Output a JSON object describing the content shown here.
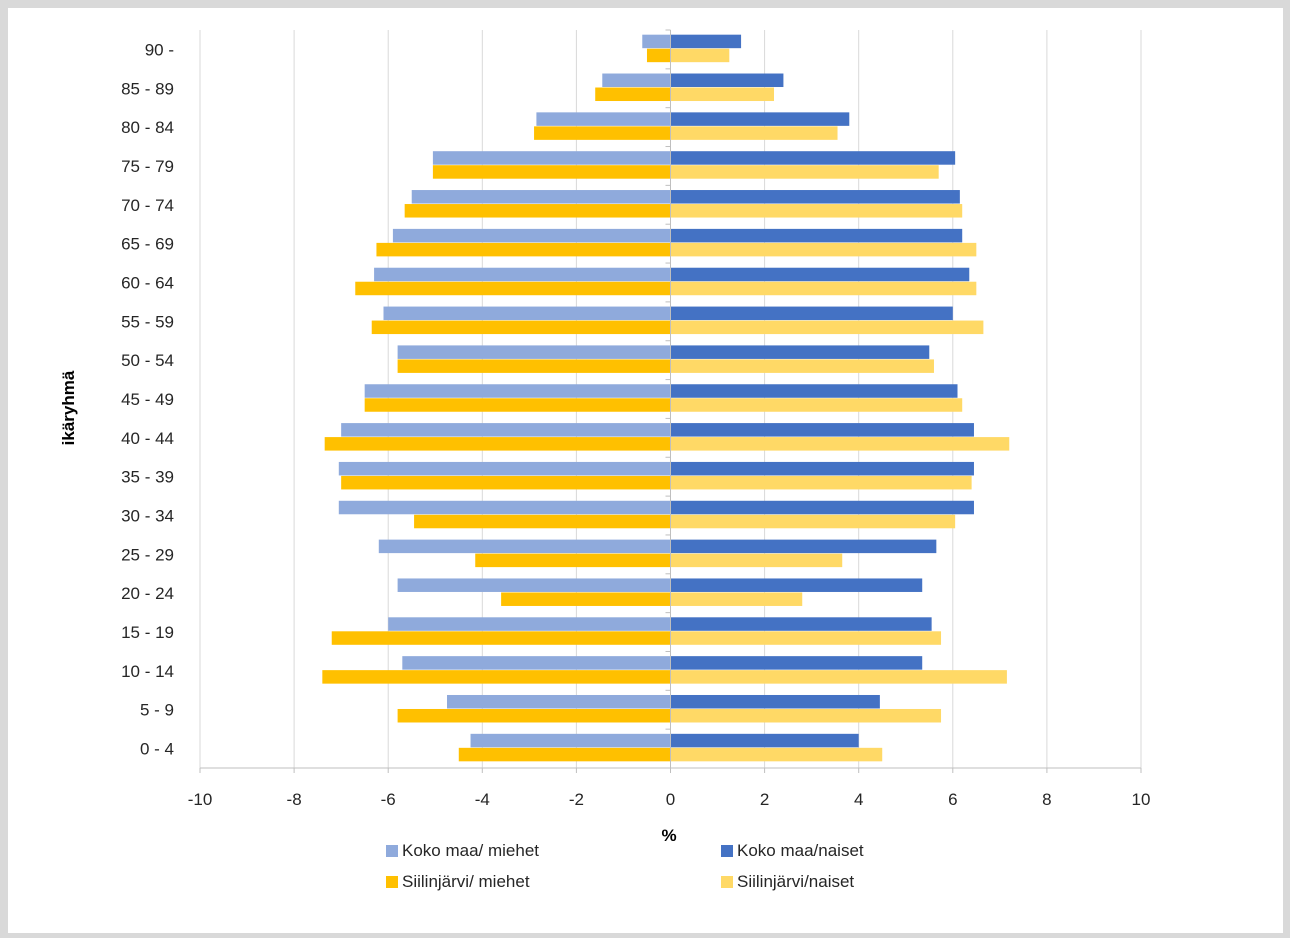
{
  "chart_data": {
    "type": "bar",
    "orientation": "horizontal",
    "title": "",
    "xlabel": "%",
    "ylabel": "ikäryhmä",
    "xlim": [
      -10,
      10
    ],
    "xticks": [
      -10,
      -8,
      -6,
      -4,
      -2,
      0,
      2,
      4,
      6,
      8,
      10
    ],
    "grid": "vertical",
    "legend_position": "bottom",
    "categories": [
      "0 - 4",
      "5 - 9",
      "10 - 14",
      "15 - 19",
      "20 - 24",
      "25 - 29",
      "30 - 34",
      "35 - 39",
      "40 - 44",
      "45 - 49",
      "50 - 54",
      "55 - 59",
      "60 - 64",
      "65 - 69",
      "70 - 74",
      "75 - 79",
      "80 - 84",
      "85 - 89",
      "90 -"
    ],
    "series": [
      {
        "name": "Koko maa/ miehet",
        "color": "#8faadc",
        "side": "left",
        "slot": 0,
        "values": [
          -4.25,
          -4.75,
          -5.7,
          -6.0,
          -5.8,
          -6.2,
          -7.05,
          -7.05,
          -7.0,
          -6.5,
          -5.8,
          -6.1,
          -6.3,
          -5.9,
          -5.5,
          -5.05,
          -2.85,
          -1.45,
          -0.6
        ]
      },
      {
        "name": "Siilinjärvi/ miehet",
        "color": "#ffc000",
        "side": "left",
        "slot": 1,
        "values": [
          -4.5,
          -5.8,
          -7.4,
          -7.2,
          -3.6,
          -4.15,
          -5.45,
          -7.0,
          -7.35,
          -6.5,
          -5.8,
          -6.35,
          -6.7,
          -6.25,
          -5.65,
          -5.05,
          -2.9,
          -1.6,
          -0.5
        ]
      },
      {
        "name": "Koko maa/naiset",
        "color": "#4472c4",
        "side": "right",
        "slot": 0,
        "values": [
          4.0,
          4.45,
          5.35,
          5.55,
          5.35,
          5.65,
          6.45,
          6.45,
          6.45,
          6.1,
          5.5,
          6.0,
          6.35,
          6.2,
          6.15,
          6.05,
          3.8,
          2.4,
          1.5
        ]
      },
      {
        "name": "Siilinjärvi/naiset",
        "color": "#ffd966",
        "side": "right",
        "slot": 1,
        "values": [
          4.5,
          5.75,
          7.15,
          5.75,
          2.8,
          3.65,
          6.05,
          6.4,
          7.2,
          6.2,
          5.6,
          6.65,
          6.5,
          6.5,
          6.2,
          5.7,
          3.55,
          2.2,
          1.25
        ]
      }
    ],
    "legend": [
      {
        "label": "Koko maa/ miehet",
        "color": "#8faadc"
      },
      {
        "label": "Koko maa/naiset",
        "color": "#4472c4"
      },
      {
        "label": "Siilinjärvi/ miehet",
        "color": "#ffc000"
      },
      {
        "label": "Siilinjärvi/naiset",
        "color": "#ffd966"
      }
    ]
  }
}
